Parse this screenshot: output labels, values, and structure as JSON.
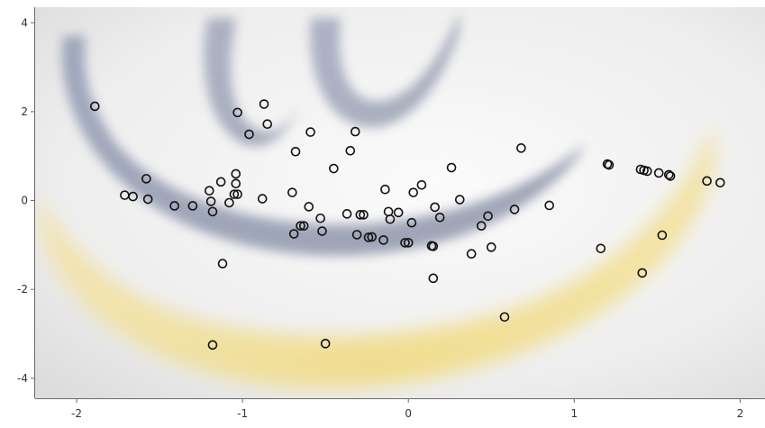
{
  "chart_data": {
    "type": "scatter",
    "title": "",
    "xlabel": "",
    "ylabel": "",
    "xlim": [
      -2.25,
      2.15
    ],
    "ylim": [
      -4.45,
      4.35
    ],
    "grid": false,
    "legend": "none",
    "xticks": [
      -2,
      -1,
      0,
      1,
      2
    ],
    "yticks": [
      -4,
      -2,
      0,
      2,
      4
    ],
    "marker": {
      "shape": "open-circle",
      "color": "#111111"
    },
    "background": {
      "watermark": "swoosh-logo",
      "colors": [
        "#3d4d78",
        "#f2cf44",
        "#e6e6e6"
      ]
    },
    "series": [
      {
        "points": [
          [
            -1.89,
            2.12
          ],
          [
            -1.71,
            0.12
          ],
          [
            -1.66,
            0.09
          ],
          [
            -1.58,
            0.49
          ],
          [
            -1.57,
            0.03
          ],
          [
            -1.41,
            -0.12
          ],
          [
            -1.3,
            -0.12
          ],
          [
            -1.2,
            0.22
          ],
          [
            -1.19,
            -0.02
          ],
          [
            -1.18,
            -0.25
          ],
          [
            -1.13,
            0.42
          ],
          [
            -1.12,
            -1.42
          ],
          [
            -1.08,
            -0.05
          ],
          [
            -1.05,
            0.14
          ],
          [
            -1.04,
            0.38
          ],
          [
            -1.04,
            0.6
          ],
          [
            -1.03,
            0.14
          ],
          [
            -1.03,
            1.98
          ],
          [
            -0.96,
            1.49
          ],
          [
            -0.88,
            0.04
          ],
          [
            -0.87,
            2.17
          ],
          [
            -0.85,
            1.72
          ],
          [
            -0.7,
            0.18
          ],
          [
            -0.69,
            -0.75
          ],
          [
            -0.68,
            1.1
          ],
          [
            -0.65,
            -0.57
          ],
          [
            -0.63,
            -0.57
          ],
          [
            -0.6,
            -0.14
          ],
          [
            -0.59,
            1.54
          ],
          [
            -0.53,
            -0.4
          ],
          [
            -0.52,
            -0.69
          ],
          [
            -0.45,
            0.72
          ],
          [
            -0.37,
            -0.3
          ],
          [
            -0.35,
            1.12
          ],
          [
            -0.32,
            1.55
          ],
          [
            -0.31,
            -0.77
          ],
          [
            -0.29,
            -0.32
          ],
          [
            -0.27,
            -0.32
          ],
          [
            -0.24,
            -0.83
          ],
          [
            -0.22,
            -0.82
          ],
          [
            -0.15,
            -0.89
          ],
          [
            -0.14,
            0.25
          ],
          [
            -0.12,
            -0.25
          ],
          [
            -0.11,
            -0.42
          ],
          [
            -0.06,
            -0.27
          ],
          [
            -0.02,
            -0.95
          ],
          [
            0.0,
            -0.95
          ],
          [
            0.02,
            -0.5
          ],
          [
            0.03,
            0.18
          ],
          [
            0.08,
            0.35
          ],
          [
            0.14,
            -1.02
          ],
          [
            0.15,
            -1.03
          ],
          [
            0.15,
            -1.75
          ],
          [
            0.16,
            -0.15
          ],
          [
            0.19,
            -0.38
          ],
          [
            0.26,
            0.74
          ],
          [
            0.31,
            0.02
          ],
          [
            0.38,
            -1.2
          ],
          [
            0.44,
            -0.57
          ],
          [
            0.48,
            -0.35
          ],
          [
            0.5,
            -1.05
          ],
          [
            0.58,
            -2.62
          ],
          [
            0.64,
            -0.2
          ],
          [
            0.68,
            1.18
          ],
          [
            0.85,
            -0.11
          ],
          [
            -1.18,
            -3.25
          ],
          [
            -0.5,
            -3.22
          ],
          [
            1.16,
            -1.08
          ],
          [
            1.2,
            0.82
          ],
          [
            1.21,
            0.8
          ],
          [
            1.4,
            0.7
          ],
          [
            1.42,
            0.68
          ],
          [
            1.44,
            0.66
          ],
          [
            1.41,
            -1.63
          ],
          [
            1.51,
            0.62
          ],
          [
            1.53,
            -0.78
          ],
          [
            1.57,
            0.58
          ],
          [
            1.58,
            0.55
          ],
          [
            1.8,
            0.44
          ],
          [
            1.88,
            0.4
          ]
        ]
      }
    ]
  }
}
